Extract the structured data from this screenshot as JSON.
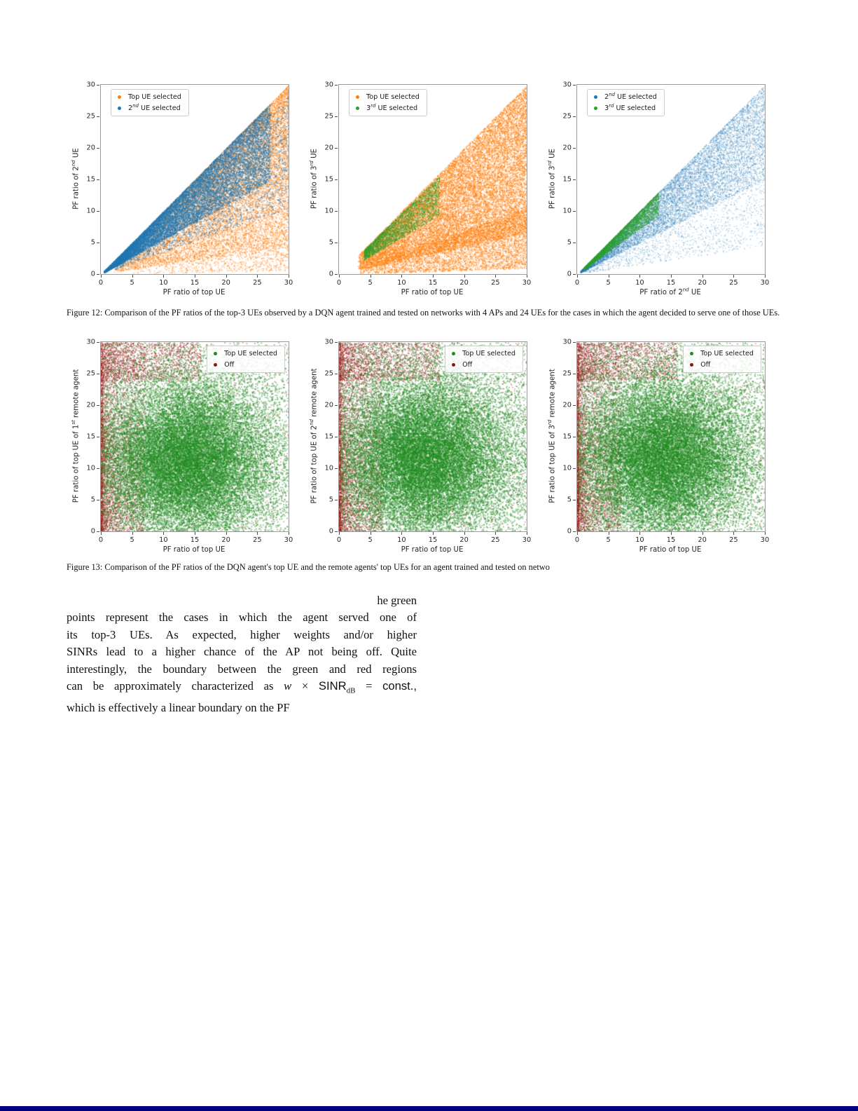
{
  "page": {
    "background": "#ffffff",
    "bottom_bar_color": "#000080"
  },
  "figure12": {
    "caption": "Figure 12: Comparison of the PF ratios of the top-3 UEs observed by a DQN agent trained and tested on networks with 4 APs and 24 UEs for the cases in which the agent decided to serve one of those UEs."
  },
  "figure13": {
    "caption": "Figure 13: Comparison of the PF ratios of the DQN agent's top UE and the remote agents' top UEs for an agent trained and tested on netwo"
  },
  "paragraph": {
    "lines": [
      "he green",
      "points represent the cases in which the agent served one of",
      "its top-3 UEs. As expected, higher weights and/or higher",
      "SINRs lead to a higher chance of the AP not being off. Quite",
      "interestingly, the boundary between the green and red regions",
      "which is effectively a linear boundary on the PF"
    ],
    "math": {
      "pre": "can be approximately characterized as ",
      "var": "w",
      "times": " × ",
      "sinr": "SINR",
      "sub": "dB",
      "eq": " = ",
      "rest": "const.,"
    }
  },
  "chart_data": [
    {
      "type": "scatter",
      "xlim": [
        0,
        30
      ],
      "ylim": [
        0,
        30
      ],
      "ticks": [
        0,
        5,
        10,
        15,
        20,
        25,
        30
      ],
      "xlabel": {
        "pre": "PF ratio of top UE",
        "sup": "",
        "post": ""
      },
      "ylabel": {
        "pre": "PF ratio of 2",
        "sup": "nd",
        "post": " UE"
      },
      "legend": {
        "position": "tl",
        "items": [
          {
            "color": "#ff7f0e",
            "label": {
              "pre": "Top UE selected",
              "sup": "",
              "post": ""
            }
          },
          {
            "color": "#1f77b4",
            "label": {
              "pre": "2",
              "sup": "nd",
              "post": " UE selected"
            }
          }
        ]
      },
      "series": [
        {
          "name": "Top UE selected",
          "color": "#ff7f0e",
          "alpha": 0.45,
          "size": 1.6,
          "components": [
            {
              "kind": "wedge",
              "n": 6500,
              "xmin": 2,
              "xmax": 30,
              "xpow": 0.7,
              "umin": 0.15,
              "umax": 0.97,
              "upow": 1.0
            },
            {
              "kind": "wedge",
              "n": 4500,
              "xmin": 8,
              "xmax": 30,
              "xpow": 0.6,
              "umin": 0.5,
              "umax": 1.0,
              "upow": 1.6
            },
            {
              "kind": "wedge",
              "n": 2000,
              "xmin": 4,
              "xmax": 30,
              "xpow": 0.55,
              "umin": 0.02,
              "umax": 0.5,
              "upow": 0.9
            }
          ]
        },
        {
          "name": "2nd UE selected",
          "color": "#1f77b4",
          "alpha": 0.5,
          "size": 1.6,
          "components": [
            {
              "kind": "wedge",
              "n": 12000,
              "xmin": 0.5,
              "xmax": 27,
              "xpow": 1.1,
              "umin": 0.55,
              "umax": 1.0,
              "upow": 1.3
            },
            {
              "kind": "wedge",
              "n": 2500,
              "xmin": 2,
              "xmax": 30,
              "xpow": 0.8,
              "umin": 0.35,
              "umax": 0.95,
              "upow": 1.0
            }
          ]
        }
      ]
    },
    {
      "type": "scatter",
      "xlim": [
        0,
        30
      ],
      "ylim": [
        0,
        30
      ],
      "ticks": [
        0,
        5,
        10,
        15,
        20,
        25,
        30
      ],
      "xlabel": {
        "pre": "PF ratio of top UE",
        "sup": "",
        "post": ""
      },
      "ylabel": {
        "pre": "PF ratio of 3",
        "sup": "rd",
        "post": " UE"
      },
      "legend": {
        "position": "tl",
        "items": [
          {
            "color": "#ff7f0e",
            "label": {
              "pre": "Top UE selected",
              "sup": "",
              "post": ""
            }
          },
          {
            "color": "#2ca02c",
            "label": {
              "pre": "3",
              "sup": "rd",
              "post": " UE selected"
            }
          }
        ]
      },
      "series": [
        {
          "name": "Top UE selected",
          "color": "#ff7f0e",
          "alpha": 0.5,
          "size": 1.6,
          "components": [
            {
              "kind": "wedge",
              "n": 16000,
              "xmin": 3,
              "xmax": 30,
              "xpow": 0.72,
              "umin": 0.22,
              "umax": 1.0,
              "upow": 1.05
            },
            {
              "kind": "wedge",
              "n": 4000,
              "xmin": 3,
              "xmax": 30,
              "xpow": 0.6,
              "umin": 0.03,
              "umax": 0.35,
              "upow": 0.9
            }
          ]
        },
        {
          "name": "3rd UE selected",
          "color": "#2ca02c",
          "alpha": 0.5,
          "size": 1.5,
          "components": [
            {
              "kind": "wedge",
              "n": 2400,
              "xmin": 4,
              "xmax": 16,
              "xpow": 1.15,
              "umin": 0.58,
              "umax": 0.97,
              "upow": 1.2
            }
          ]
        }
      ]
    },
    {
      "type": "scatter",
      "xlim": [
        0,
        30
      ],
      "ylim": [
        0,
        30
      ],
      "ticks": [
        0,
        5,
        10,
        15,
        20,
        25,
        30
      ],
      "xlabel": {
        "pre": "PF ratio of 2",
        "sup": "nd",
        "post": " UE"
      },
      "ylabel": {
        "pre": "PF ratio of 3",
        "sup": "rd",
        "post": " UE"
      },
      "legend": {
        "position": "tl",
        "items": [
          {
            "color": "#1f77b4",
            "label": {
              "pre": "2",
              "sup": "nd",
              "post": " UE selected"
            }
          },
          {
            "color": "#2ca02c",
            "label": {
              "pre": "3",
              "sup": "rd",
              "post": " UE selected"
            }
          }
        ]
      },
      "series": [
        {
          "name": "2nd UE selected",
          "color": "#1f77b4",
          "alpha": 0.32,
          "size": 1.4,
          "components": [
            {
              "kind": "wedge",
              "n": 9500,
              "xmin": 0.5,
              "xmax": 30,
              "xpow": 1.0,
              "umin": 0.5,
              "umax": 1.0,
              "upow": 1.25
            },
            {
              "kind": "wedge",
              "n": 2500,
              "xmin": 1,
              "xmax": 30,
              "xpow": 0.75,
              "umin": 0.15,
              "umax": 0.9,
              "upow": 1.0
            }
          ]
        },
        {
          "name": "3rd UE selected",
          "color": "#2ca02c",
          "alpha": 0.55,
          "size": 1.4,
          "components": [
            {
              "kind": "wedge",
              "n": 3000,
              "xmin": 1,
              "xmax": 13,
              "xpow": 1.1,
              "umin": 0.72,
              "umax": 1.0,
              "upow": 1.5
            }
          ]
        }
      ]
    },
    {
      "type": "scatter",
      "xlim": [
        0,
        30
      ],
      "ylim": [
        0,
        30
      ],
      "ticks": [
        0,
        5,
        10,
        15,
        20,
        25,
        30
      ],
      "xlabel": {
        "pre": "PF ratio of top UE",
        "sup": "",
        "post": ""
      },
      "ylabel": {
        "pre": "PF ratio of top UE of 1",
        "sup": "st",
        "post": " remote agent"
      },
      "legend": {
        "position": "tr",
        "items": [
          {
            "color": "#1f8b1f",
            "label": {
              "pre": "Top UE selected",
              "sup": "",
              "post": ""
            }
          },
          {
            "color": "#8b1515",
            "label": {
              "pre": "Off",
              "sup": "",
              "post": ""
            }
          }
        ]
      },
      "series": [
        {
          "name": "Off",
          "color": "#9e1c1c",
          "alpha": 0.5,
          "size": 1.5,
          "components": [
            {
              "kind": "powbox",
              "n": 3800,
              "x0": 0,
              "x1": 7,
              "xpow": 2.2,
              "y0": 0,
              "y1": 30,
              "ypow": 0.6
            },
            {
              "kind": "powbox",
              "n": 1800,
              "x0": 0,
              "x1": 16,
              "xpow": 1.5,
              "y0": 24,
              "y1": 30,
              "ypow": 1.0
            },
            {
              "kind": "powbox",
              "n": 1000,
              "x0": 0,
              "x1": 30,
              "xpow": 1.0,
              "y0": 0,
              "y1": 30,
              "ypow": 1.0
            }
          ]
        },
        {
          "name": "Top UE selected",
          "color": "#1f8b1f",
          "alpha": 0.42,
          "size": 2,
          "components": [
            {
              "kind": "blob",
              "n": 20000,
              "cx": 13.5,
              "cy": 11,
              "sx": 6.8,
              "sy": 6.0
            },
            {
              "kind": "blob",
              "n": 6000,
              "cx": 14,
              "cy": 13.5,
              "sx": 9.5,
              "sy": 8.5
            },
            {
              "kind": "powbox",
              "n": 2200,
              "x0": 0,
              "x1": 30,
              "xpow": 1.0,
              "y0": 0,
              "y1": 30,
              "ypow": 1.0
            }
          ]
        }
      ]
    },
    {
      "type": "scatter",
      "xlim": [
        0,
        30
      ],
      "ylim": [
        0,
        30
      ],
      "ticks": [
        0,
        5,
        10,
        15,
        20,
        25,
        30
      ],
      "xlabel": {
        "pre": "PF ratio of top UE",
        "sup": "",
        "post": ""
      },
      "ylabel": {
        "pre": "PF ratio of top UE of 2",
        "sup": "nd",
        "post": " remote agent"
      },
      "legend": {
        "position": "tr",
        "items": [
          {
            "color": "#1f8b1f",
            "label": {
              "pre": "Top UE selected",
              "sup": "",
              "post": ""
            }
          },
          {
            "color": "#8b1515",
            "label": {
              "pre": "Off",
              "sup": "",
              "post": ""
            }
          }
        ]
      },
      "series": [
        {
          "name": "Off",
          "color": "#9e1c1c",
          "alpha": 0.5,
          "size": 1.5,
          "components": [
            {
              "kind": "powbox",
              "n": 3800,
              "x0": 0,
              "x1": 7,
              "xpow": 2.2,
              "y0": 0,
              "y1": 30,
              "ypow": 0.6
            },
            {
              "kind": "powbox",
              "n": 1800,
              "x0": 0,
              "x1": 16,
              "xpow": 1.5,
              "y0": 24,
              "y1": 30,
              "ypow": 1.0
            },
            {
              "kind": "powbox",
              "n": 1000,
              "x0": 0,
              "x1": 30,
              "xpow": 1.0,
              "y0": 0,
              "y1": 30,
              "ypow": 1.0
            }
          ]
        },
        {
          "name": "Top UE selected",
          "color": "#1f8b1f",
          "alpha": 0.42,
          "size": 2,
          "components": [
            {
              "kind": "blob",
              "n": 20000,
              "cx": 13.5,
              "cy": 11.5,
              "sx": 6.8,
              "sy": 6.2
            },
            {
              "kind": "blob",
              "n": 6000,
              "cx": 14,
              "cy": 14,
              "sx": 9.5,
              "sy": 8.5
            },
            {
              "kind": "powbox",
              "n": 2200,
              "x0": 0,
              "x1": 30,
              "xpow": 1.0,
              "y0": 0,
              "y1": 30,
              "ypow": 1.0
            }
          ]
        }
      ]
    },
    {
      "type": "scatter",
      "xlim": [
        0,
        30
      ],
      "ylim": [
        0,
        30
      ],
      "ticks": [
        0,
        5,
        10,
        15,
        20,
        25,
        30
      ],
      "xlabel": {
        "pre": "PF ratio of top UE",
        "sup": "",
        "post": ""
      },
      "ylabel": {
        "pre": "PF ratio of top UE of 3",
        "sup": "rd",
        "post": " remote agent"
      },
      "legend": {
        "position": "tr",
        "items": [
          {
            "color": "#1f8b1f",
            "label": {
              "pre": "Top UE selected",
              "sup": "",
              "post": ""
            }
          },
          {
            "color": "#8b1515",
            "label": {
              "pre": "Off",
              "sup": "",
              "post": ""
            }
          }
        ]
      },
      "series": [
        {
          "name": "Off",
          "color": "#9e1c1c",
          "alpha": 0.5,
          "size": 1.5,
          "components": [
            {
              "kind": "powbox",
              "n": 3800,
              "x0": 0,
              "x1": 7,
              "xpow": 2.2,
              "y0": 0,
              "y1": 30,
              "ypow": 0.6
            },
            {
              "kind": "powbox",
              "n": 1800,
              "x0": 0,
              "x1": 16,
              "xpow": 1.5,
              "y0": 24,
              "y1": 30,
              "ypow": 1.0
            },
            {
              "kind": "powbox",
              "n": 1000,
              "x0": 0,
              "x1": 30,
              "xpow": 1.0,
              "y0": 0,
              "y1": 30,
              "ypow": 1.0
            }
          ]
        },
        {
          "name": "Top UE selected",
          "color": "#1f8b1f",
          "alpha": 0.42,
          "size": 2,
          "components": [
            {
              "kind": "blob",
              "n": 20000,
              "cx": 13.8,
              "cy": 11.5,
              "sx": 6.9,
              "sy": 6.2
            },
            {
              "kind": "blob",
              "n": 6000,
              "cx": 14.5,
              "cy": 14,
              "sx": 9.5,
              "sy": 8.5
            },
            {
              "kind": "powbox",
              "n": 2200,
              "x0": 0,
              "x1": 30,
              "xpow": 1.0,
              "y0": 0,
              "y1": 30,
              "ypow": 1.0
            }
          ]
        }
      ]
    }
  ]
}
